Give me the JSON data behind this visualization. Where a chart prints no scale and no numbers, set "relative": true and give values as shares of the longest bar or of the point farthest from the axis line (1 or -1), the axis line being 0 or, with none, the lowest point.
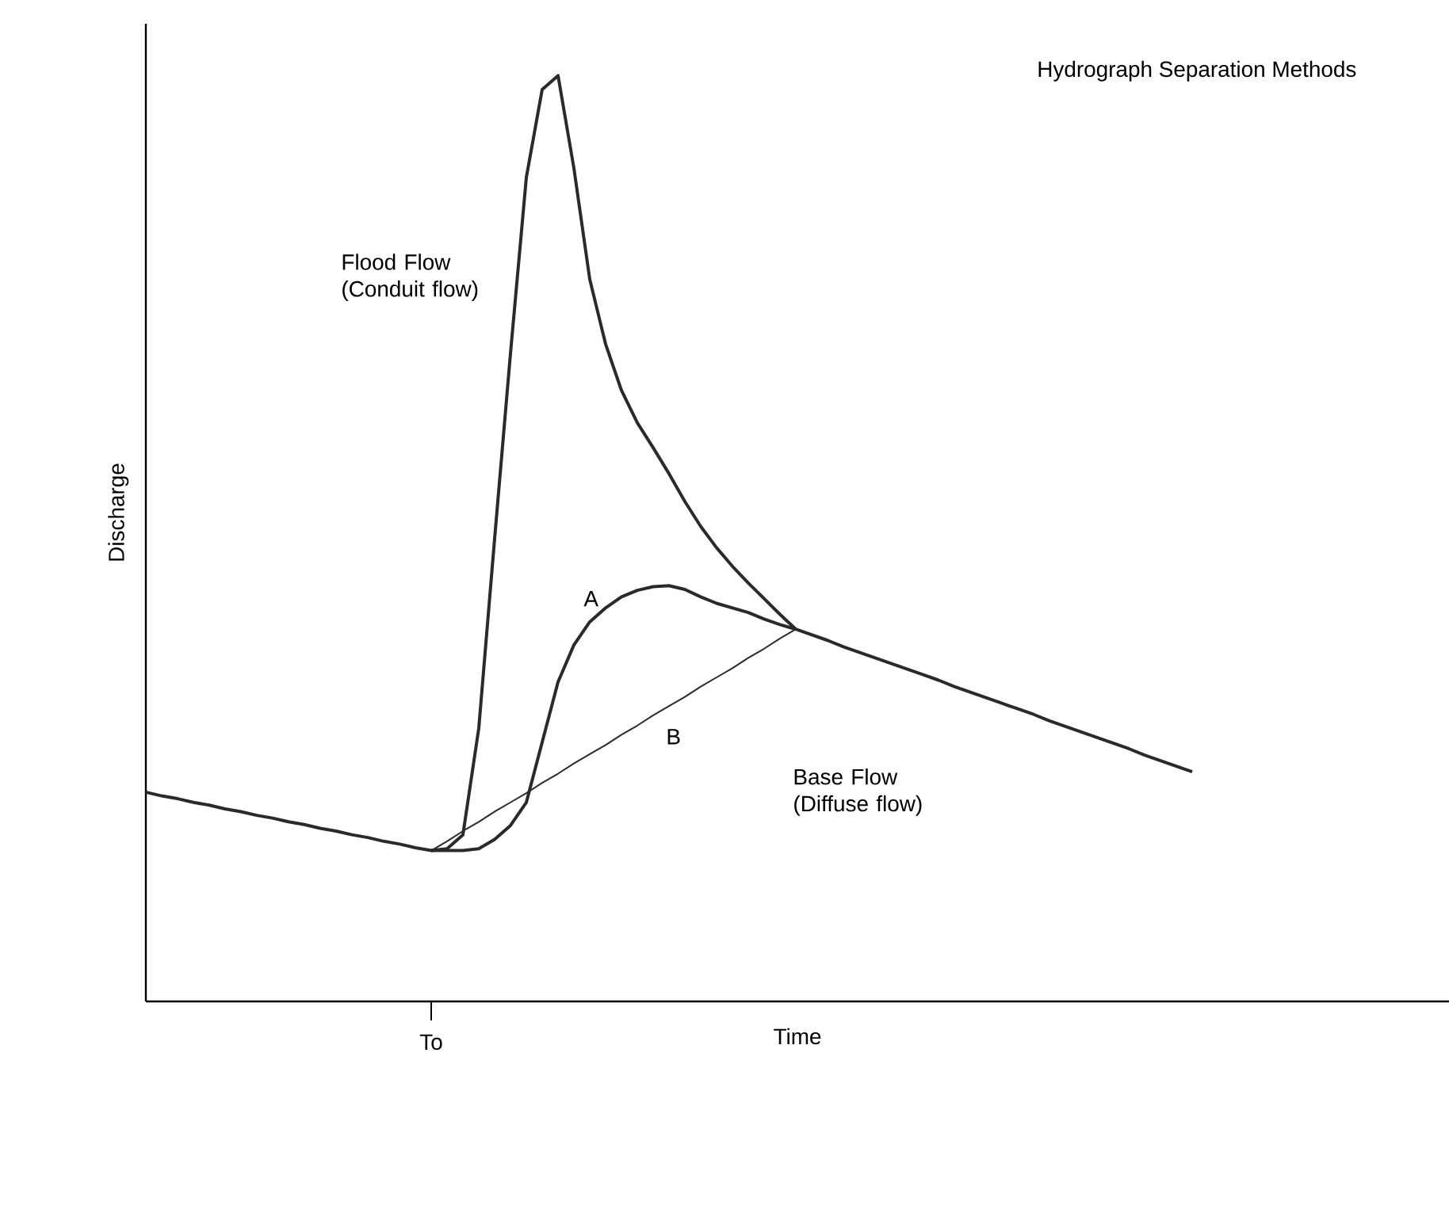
{
  "chart_data": {
    "type": "line",
    "relative": true,
    "title": "Hydrograph Separation Methods",
    "xlabel": "Time",
    "ylabel": "Discharge",
    "marker": "none",
    "line_style": "solid",
    "categories": [
      null,
      null,
      null,
      null,
      null,
      null,
      null,
      null,
      null,
      null,
      null,
      null,
      null,
      null,
      null,
      null,
      null,
      null,
      null,
      null,
      null,
      null,
      null,
      null,
      null,
      null,
      null,
      null,
      null,
      null,
      null,
      null,
      null,
      null,
      null,
      null,
      null,
      null,
      null,
      null,
      null,
      null,
      null,
      null,
      null,
      null,
      null,
      null,
      null,
      null,
      null,
      null,
      null,
      null,
      null,
      null,
      null,
      null,
      null,
      null,
      null,
      null,
      null,
      null,
      null,
      null,
      null
    ],
    "series": [
      {
        "color": "#2a2a2a",
        "values": [
          0.226,
          0.222,
          0.219,
          0.215,
          0.212,
          0.208,
          0.205,
          0.201,
          0.198,
          0.194,
          0.191,
          0.187,
          0.184,
          0.18,
          0.177,
          0.173,
          0.17,
          0.166,
          0.163,
          0.165,
          0.18,
          0.295,
          0.5,
          0.7,
          0.89,
          0.985,
          1,
          0.9,
          0.78,
          0.71,
          0.66,
          0.625,
          0.598,
          0.57,
          0.54,
          0.513,
          0.49,
          0.47,
          0.452,
          0.435,
          0.418,
          0.402,
          0.396,
          0.39,
          0.383,
          0.377,
          0.371,
          0.365,
          0.359,
          0.353,
          0.347,
          0.34,
          0.334,
          0.328,
          0.322,
          0.316,
          0.31,
          0.303,
          0.297,
          0.291,
          0.285,
          0.279,
          0.273,
          0.266,
          0.26,
          0.254,
          0.248
        ]
      },
      {
        "color": "#2a2a2a",
        "values": [
          null,
          null,
          null,
          null,
          null,
          null,
          null,
          null,
          null,
          null,
          null,
          null,
          null,
          null,
          null,
          null,
          null,
          null,
          0.163,
          0.163,
          0.163,
          0.165,
          0.175,
          0.19,
          0.215,
          0.28,
          0.345,
          0.385,
          0.41,
          0.425,
          0.437,
          0.444,
          0.448,
          0.449,
          0.445,
          0.437,
          0.43,
          0.425,
          0.42,
          0.413,
          0.407,
          0.402,
          null,
          null,
          null,
          null,
          null,
          null,
          null,
          null,
          null,
          null,
          null,
          null,
          null,
          null,
          null,
          null,
          null,
          null,
          null,
          null,
          null,
          null,
          null,
          null,
          null
        ]
      },
      {
        "color": "#2a2a2a",
        "values": [
          null,
          null,
          null,
          null,
          null,
          null,
          null,
          null,
          null,
          null,
          null,
          null,
          null,
          null,
          null,
          null,
          null,
          null,
          0.163,
          0.173,
          0.184,
          0.194,
          0.205,
          0.215,
          0.225,
          0.236,
          0.246,
          0.257,
          0.267,
          0.277,
          0.288,
          0.298,
          0.309,
          0.319,
          0.329,
          0.34,
          0.35,
          0.36,
          0.371,
          0.381,
          0.392,
          0.402,
          null,
          null,
          null,
          null,
          null,
          null,
          null,
          null,
          null,
          null,
          null,
          null,
          null,
          null,
          null,
          null,
          null,
          null,
          null,
          null,
          null,
          null,
          null,
          null,
          null
        ]
      }
    ],
    "annotations": [
      "Flood Flow (Conduit flow)",
      "A",
      "B",
      "Base Flow (Diffuse flow)",
      "To"
    ]
  }
}
